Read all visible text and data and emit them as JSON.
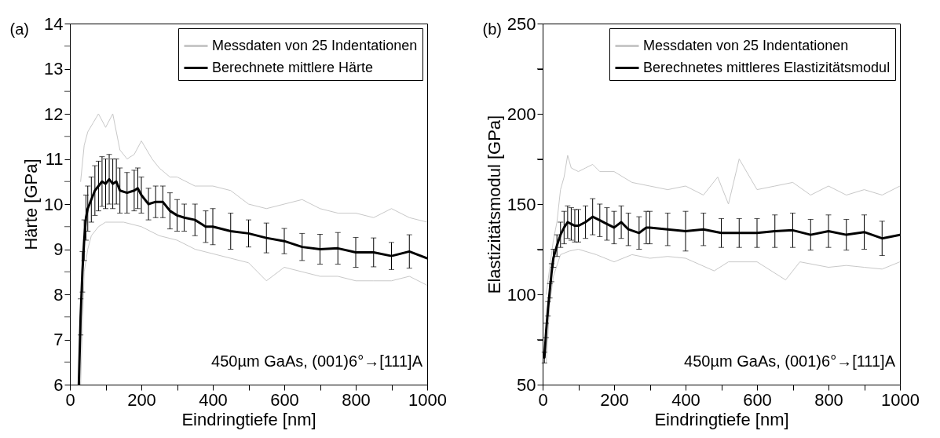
{
  "chart_data": [
    {
      "type": "line",
      "title": "(a)",
      "xlabel": "Eindringtiefe [nm]",
      "ylabel": "Härte [GPa]",
      "annotations": [
        "450µm GaAs, (001)6°→[111]A"
      ],
      "legend": "top right",
      "xlim": [
        0,
        1000
      ],
      "ylim": [
        6,
        14
      ],
      "xticks": [
        0,
        {
          "value": 100,
          "label": null
        },
        200,
        {
          "value": 300,
          "label": null
        },
        400,
        {
          "value": 500,
          "label": null
        },
        600,
        {
          "value": 700,
          "label": null
        },
        800,
        {
          "value": 900,
          "label": null
        },
        1000
      ],
      "yticks": [
        6,
        {
          "value": 6.5,
          "label": null
        },
        7,
        {
          "value": 7.5,
          "label": null
        },
        8,
        {
          "value": 8.5,
          "label": null
        },
        9,
        {
          "value": 9.5,
          "label": null
        },
        10,
        {
          "value": 10.5,
          "label": null
        },
        11,
        {
          "value": 11.5,
          "label": null
        },
        12,
        {
          "value": 12.5,
          "label": null
        },
        13,
        {
          "value": 13.5,
          "label": null
        },
        14
      ],
      "series": [
        {
          "name": "Messdaten von 25 Indentationen",
          "color": "#c8c8c8",
          "x": [
            30,
            40,
            50,
            65,
            80,
            100,
            120,
            140,
            160,
            180,
            200,
            230,
            250,
            280,
            300,
            350,
            400,
            450,
            500,
            550,
            600,
            650,
            700,
            750,
            800,
            850,
            900,
            950,
            1000
          ],
          "values": [
            10.5,
            11.3,
            11.6,
            11.8,
            12.0,
            11.7,
            12.0,
            11.2,
            11.0,
            11.1,
            11.4,
            11.0,
            10.8,
            10.6,
            10.6,
            10.4,
            10.4,
            10.3,
            10.0,
            9.9,
            10.0,
            10.1,
            9.9,
            9.8,
            9.8,
            9.7,
            9.9,
            9.7,
            9.6
          ]
        },
        {
          "color": "#c8c8c8",
          "x": [
            30,
            40,
            50,
            60,
            80,
            100,
            150,
            200,
            250,
            300,
            350,
            400,
            450,
            500,
            550,
            600,
            650,
            700,
            750,
            800,
            850,
            900,
            950,
            1000
          ],
          "values": [
            6.0,
            8.5,
            9.0,
            9.3,
            9.5,
            9.6,
            9.6,
            9.5,
            9.3,
            9.2,
            9.0,
            8.9,
            8.8,
            8.7,
            8.3,
            8.6,
            8.5,
            8.4,
            8.4,
            8.3,
            8.3,
            8.3,
            8.4,
            8.2
          ]
        },
        {
          "name": "Berechnete mittlere Härte",
          "color": "#000000",
          "x": [
            25,
            30,
            35,
            40,
            45,
            50,
            60,
            70,
            80,
            90,
            100,
            110,
            120,
            130,
            140,
            160,
            180,
            190,
            200,
            220,
            240,
            260,
            280,
            300,
            320,
            350,
            380,
            400,
            450,
            500,
            550,
            600,
            650,
            700,
            750,
            800,
            850,
            900,
            950,
            1000
          ],
          "values": [
            6.0,
            7.5,
            8.5,
            9.2,
            9.7,
            9.9,
            10.1,
            10.3,
            10.4,
            10.5,
            10.45,
            10.55,
            10.45,
            10.5,
            10.3,
            10.25,
            10.3,
            10.35,
            10.2,
            10.0,
            10.05,
            10.05,
            9.85,
            9.75,
            9.7,
            9.65,
            9.5,
            9.5,
            9.4,
            9.35,
            9.25,
            9.18,
            9.05,
            9.0,
            9.02,
            8.93,
            8.93,
            8.85,
            8.95,
            8.8
          ],
          "errors": [
            null,
            0.4,
            0.45,
            0.45,
            0.5,
            0.5,
            0.5,
            0.55,
            0.55,
            0.55,
            0.55,
            0.55,
            0.55,
            0.5,
            0.5,
            0.45,
            0.45,
            0.45,
            0.4,
            0.35,
            0.35,
            0.35,
            0.4,
            0.35,
            0.3,
            0.35,
            0.35,
            0.4,
            0.4,
            0.3,
            0.33,
            0.28,
            0.3,
            0.33,
            0.35,
            0.33,
            0.32,
            0.3,
            0.37,
            null
          ]
        }
      ]
    },
    {
      "type": "line",
      "title": "(b)",
      "xlabel": "Eindringtiefe [nm]",
      "ylabel": "Elastizitätsmodul [GPa]",
      "annotations": [
        "450µm GaAs, (001)6°→[111]A"
      ],
      "legend": "top right",
      "xlim": [
        0,
        1000
      ],
      "ylim": [
        50,
        250
      ],
      "xticks": [
        0,
        {
          "value": 100,
          "label": null
        },
        200,
        {
          "value": 300,
          "label": null
        },
        400,
        {
          "value": 500,
          "label": null
        },
        600,
        {
          "value": 700,
          "label": null
        },
        800,
        {
          "value": 900,
          "label": null
        },
        1000
      ],
      "yticks": [
        50,
        {
          "value": 75,
          "label": null
        },
        100,
        {
          "value": 125,
          "label": null
        },
        150,
        {
          "value": 175,
          "label": null
        },
        200,
        {
          "value": 225,
          "label": null
        },
        250
      ],
      "series": [
        {
          "name": "Messdaten von 25 Indentationen",
          "color": "#c8c8c8",
          "x": [
            10,
            20,
            30,
            40,
            50,
            60,
            70,
            80,
            100,
            120,
            140,
            160,
            200,
            250,
            300,
            350,
            400,
            450,
            490,
            520,
            550,
            600,
            650,
            700,
            750,
            800,
            850,
            900,
            950,
            1000
          ],
          "values": [
            100,
            115,
            130,
            140,
            158,
            165,
            177,
            170,
            168,
            170,
            172,
            168,
            168,
            162,
            160,
            158,
            160,
            155,
            165,
            150,
            175,
            158,
            160,
            162,
            155,
            160,
            155,
            158,
            155,
            160
          ]
        },
        {
          "color": "#c8c8c8",
          "x": [
            10,
            20,
            30,
            50,
            75,
            100,
            150,
            200,
            250,
            300,
            350,
            400,
            480,
            520,
            600,
            680,
            720,
            800,
            850,
            900,
            950,
            1000
          ],
          "values": [
            62,
            95,
            110,
            122,
            124,
            125,
            122,
            118,
            122,
            120,
            121,
            120,
            113,
            118,
            118,
            108,
            118,
            115,
            116,
            115,
            114,
            118
          ]
        },
        {
          "name": "Berechnetes mittleres Elastizitätsmodul",
          "color": "#000000",
          "x": [
            5,
            10,
            15,
            20,
            25,
            30,
            40,
            50,
            60,
            70,
            80,
            90,
            100,
            120,
            140,
            160,
            180,
            200,
            220,
            240,
            270,
            290,
            300,
            350,
            400,
            450,
            500,
            550,
            600,
            650,
            700,
            750,
            800,
            850,
            900,
            950,
            1000
          ],
          "values": [
            65,
            80,
            92,
            102,
            112,
            120,
            127,
            133,
            137,
            140,
            139,
            138,
            138,
            140,
            143,
            141,
            139,
            137,
            140,
            136,
            134,
            137,
            137,
            136,
            135,
            136,
            134,
            134,
            134,
            135,
            135.5,
            133,
            135,
            133,
            134.5,
            131,
            133
          ],
          "errors": [
            3,
            4,
            4,
            4,
            5,
            5,
            6,
            7,
            9,
            9,
            9,
            9,
            9,
            9,
            10,
            9,
            9,
            9,
            9,
            9,
            9,
            9,
            9,
            9,
            11,
            9,
            8,
            8,
            8,
            9,
            9.5,
            8.5,
            9,
            8.5,
            9.5,
            9.5,
            null
          ]
        }
      ]
    }
  ]
}
